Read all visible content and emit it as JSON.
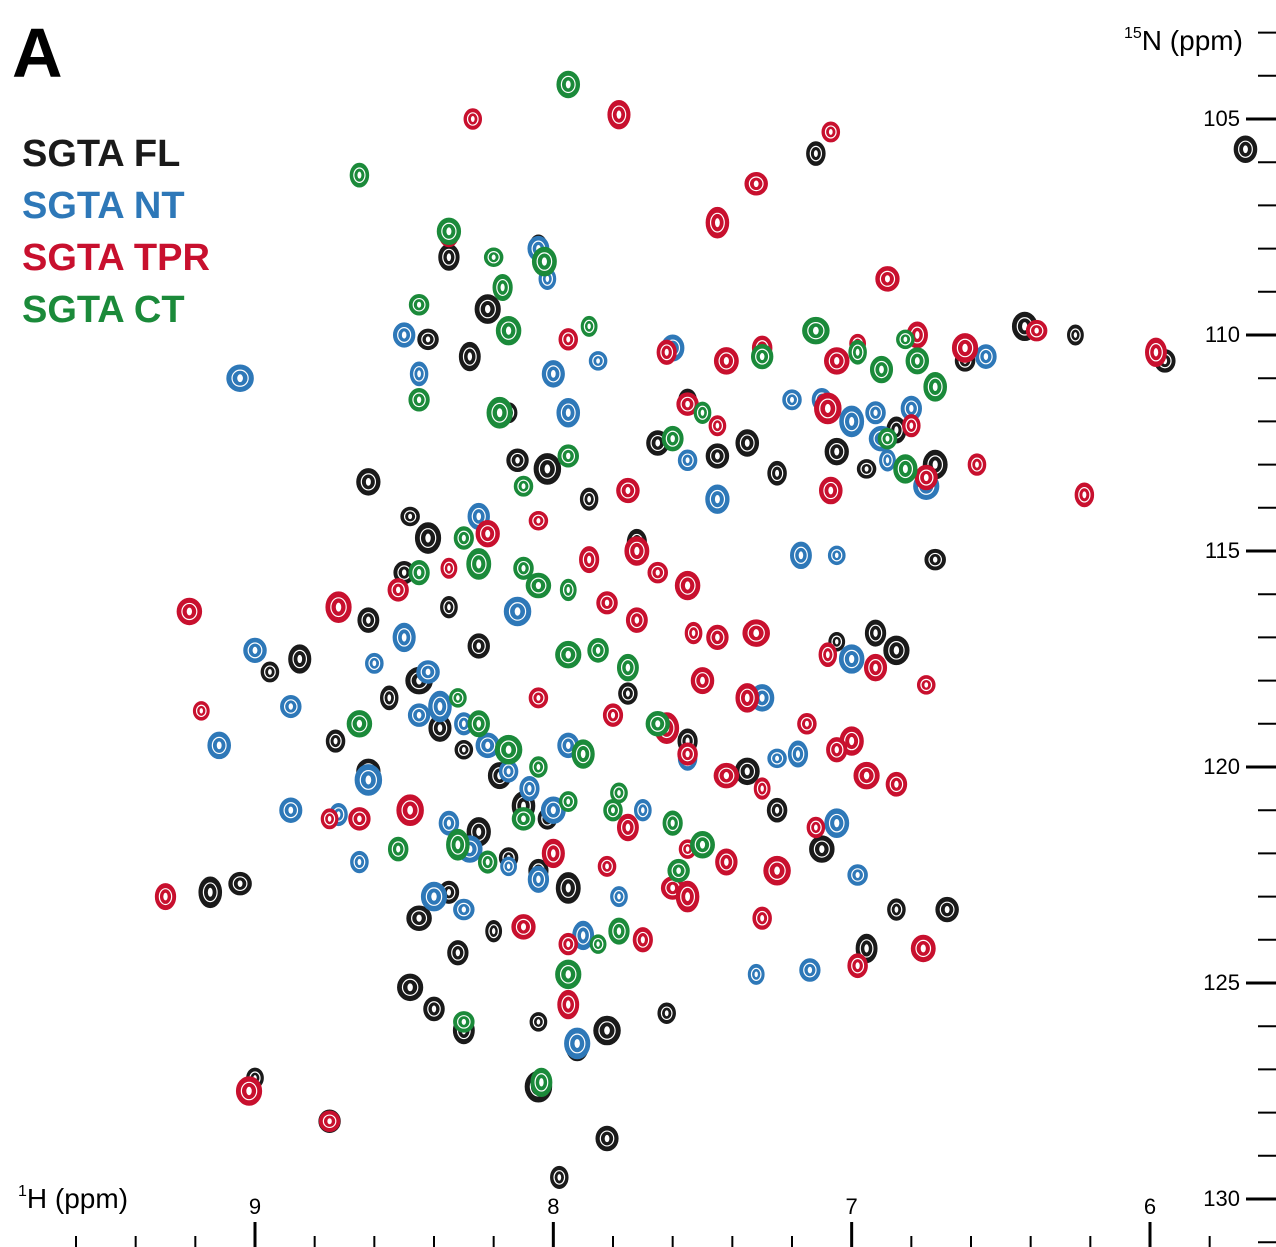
{
  "panel_label": "A",
  "legend": [
    {
      "label": "SGTA FL",
      "color": "#1a1a1a"
    },
    {
      "label": "SGTA NT",
      "color": "#2e78b8"
    },
    {
      "label": "SGTA TPR",
      "color": "#c8102e"
    },
    {
      "label": "SGTA CT",
      "color": "#1b8a3a"
    }
  ],
  "chart_data": {
    "type": "scatter",
    "subtype": "2D 1H-15N HSQC NMR contour overlay",
    "xlabel": {
      "sup": "1",
      "main": "H (ppm)"
    },
    "ylabel": {
      "sup": "15",
      "main": "N (ppm)"
    },
    "x_reversed": true,
    "y_reversed": true,
    "xlim": [
      10.0,
      5.9
    ],
    "ylim": [
      101.5,
      131.0
    ],
    "x_ticks": [
      9,
      8,
      7,
      6
    ],
    "y_ticks": [
      105,
      110,
      115,
      120,
      125,
      130
    ],
    "grid": false,
    "series": [
      {
        "name": "SGTA FL",
        "color": "#1a1a1a",
        "points": [
          [
            8.05,
            107.9
          ],
          [
            8.35,
            108.2
          ],
          [
            8.22,
            109.4
          ],
          [
            8.42,
            110.1
          ],
          [
            8.28,
            110.5
          ],
          [
            8.15,
            111.8
          ],
          [
            8.12,
            112.9
          ],
          [
            8.02,
            113.1
          ],
          [
            7.88,
            113.8
          ],
          [
            7.65,
            112.5
          ],
          [
            7.55,
            111.5
          ],
          [
            7.45,
            112.8
          ],
          [
            7.35,
            112.5
          ],
          [
            7.25,
            113.2
          ],
          [
            7.05,
            112.7
          ],
          [
            6.95,
            113.1
          ],
          [
            6.85,
            112.2
          ],
          [
            6.72,
            113.0
          ],
          [
            6.62,
            110.6
          ],
          [
            6.42,
            109.8
          ],
          [
            6.25,
            110.0
          ],
          [
            5.95,
            110.6
          ],
          [
            8.42,
            114.7
          ],
          [
            8.5,
            115.5
          ],
          [
            8.62,
            116.6
          ],
          [
            8.35,
            116.3
          ],
          [
            8.25,
            117.2
          ],
          [
            8.45,
            118.0
          ],
          [
            8.55,
            118.4
          ],
          [
            8.38,
            119.1
          ],
          [
            8.3,
            119.6
          ],
          [
            8.18,
            120.2
          ],
          [
            8.1,
            120.9
          ],
          [
            8.02,
            121.2
          ],
          [
            8.25,
            121.5
          ],
          [
            8.15,
            122.1
          ],
          [
            8.05,
            122.4
          ],
          [
            7.95,
            122.8
          ],
          [
            8.35,
            122.9
          ],
          [
            8.45,
            123.5
          ],
          [
            8.2,
            123.8
          ],
          [
            8.32,
            124.3
          ],
          [
            8.48,
            125.1
          ],
          [
            8.4,
            125.6
          ],
          [
            8.3,
            126.1
          ],
          [
            8.05,
            125.9
          ],
          [
            7.92,
            126.5
          ],
          [
            7.82,
            126.1
          ],
          [
            7.62,
            125.7
          ],
          [
            8.85,
            117.5
          ],
          [
            8.95,
            117.8
          ],
          [
            9.05,
            122.7
          ],
          [
            9.15,
            122.9
          ],
          [
            8.73,
            119.4
          ],
          [
            8.62,
            120.1
          ],
          [
            7.75,
            118.3
          ],
          [
            7.55,
            119.4
          ],
          [
            7.35,
            120.1
          ],
          [
            7.25,
            121.0
          ],
          [
            7.1,
            121.9
          ],
          [
            7.05,
            117.1
          ],
          [
            6.92,
            116.9
          ],
          [
            6.85,
            117.3
          ],
          [
            6.72,
            115.2
          ],
          [
            6.95,
            124.2
          ],
          [
            9.0,
            127.2
          ],
          [
            8.75,
            128.2
          ],
          [
            8.05,
            127.4
          ],
          [
            7.98,
            129.5
          ],
          [
            7.82,
            128.6
          ],
          [
            6.85,
            123.3
          ],
          [
            6.68,
            123.3
          ],
          [
            5.68,
            105.7
          ],
          [
            7.12,
            105.8
          ],
          [
            8.62,
            113.4
          ],
          [
            8.48,
            114.2
          ],
          [
            7.72,
            114.8
          ]
        ]
      },
      {
        "name": "SGTA NT",
        "color": "#2e78b8",
        "points": [
          [
            8.05,
            108.0
          ],
          [
            8.02,
            108.7
          ],
          [
            8.5,
            110.0
          ],
          [
            9.05,
            111.0
          ],
          [
            8.45,
            110.9
          ],
          [
            8.0,
            110.9
          ],
          [
            7.85,
            110.6
          ],
          [
            7.6,
            110.3
          ],
          [
            7.95,
            111.8
          ],
          [
            7.55,
            112.9
          ],
          [
            7.45,
            113.8
          ],
          [
            7.2,
            111.5
          ],
          [
            7.1,
            111.5
          ],
          [
            7.0,
            112.0
          ],
          [
            6.92,
            111.8
          ],
          [
            6.9,
            112.4
          ],
          [
            6.88,
            112.9
          ],
          [
            6.8,
            111.7
          ],
          [
            6.75,
            113.5
          ],
          [
            6.55,
            110.5
          ],
          [
            7.17,
            115.1
          ],
          [
            7.05,
            115.1
          ],
          [
            8.25,
            114.2
          ],
          [
            8.12,
            116.4
          ],
          [
            8.05,
            115.8
          ],
          [
            8.5,
            117.0
          ],
          [
            8.6,
            117.6
          ],
          [
            8.42,
            117.8
          ],
          [
            8.38,
            118.6
          ],
          [
            8.3,
            119.0
          ],
          [
            8.22,
            119.5
          ],
          [
            8.15,
            120.1
          ],
          [
            8.08,
            120.5
          ],
          [
            8.0,
            121.0
          ],
          [
            8.35,
            121.3
          ],
          [
            8.28,
            121.9
          ],
          [
            8.15,
            122.3
          ],
          [
            8.05,
            122.6
          ],
          [
            8.4,
            123.0
          ],
          [
            8.3,
            123.3
          ],
          [
            7.9,
            123.9
          ],
          [
            7.78,
            123.0
          ],
          [
            8.45,
            118.8
          ],
          [
            8.62,
            120.3
          ],
          [
            8.72,
            121.1
          ],
          [
            8.88,
            121.0
          ],
          [
            8.65,
            122.2
          ],
          [
            9.0,
            117.3
          ],
          [
            9.12,
            119.5
          ],
          [
            7.55,
            119.8
          ],
          [
            7.3,
            118.4
          ],
          [
            7.25,
            119.8
          ],
          [
            7.18,
            119.7
          ],
          [
            7.05,
            121.3
          ],
          [
            6.98,
            122.5
          ],
          [
            7.0,
            117.5
          ],
          [
            7.32,
            124.8
          ],
          [
            7.14,
            124.7
          ],
          [
            7.92,
            126.4
          ],
          [
            8.88,
            118.6
          ],
          [
            7.95,
            119.5
          ],
          [
            7.7,
            121.0
          ]
        ]
      },
      {
        "name": "SGTA TPR",
        "color": "#c8102e",
        "points": [
          [
            8.27,
            105.0
          ],
          [
            7.78,
            104.9
          ],
          [
            7.07,
            105.3
          ],
          [
            7.32,
            106.5
          ],
          [
            7.45,
            107.4
          ],
          [
            8.35,
            107.7
          ],
          [
            6.88,
            108.7
          ],
          [
            7.95,
            110.1
          ],
          [
            7.62,
            110.4
          ],
          [
            7.42,
            110.6
          ],
          [
            7.3,
            110.3
          ],
          [
            7.05,
            110.6
          ],
          [
            6.98,
            110.2
          ],
          [
            6.78,
            110.0
          ],
          [
            6.62,
            110.3
          ],
          [
            6.38,
            109.9
          ],
          [
            5.98,
            110.4
          ],
          [
            7.45,
            112.1
          ],
          [
            7.55,
            111.6
          ],
          [
            7.08,
            111.7
          ],
          [
            6.8,
            112.1
          ],
          [
            6.75,
            113.3
          ],
          [
            6.58,
            113.0
          ],
          [
            7.75,
            113.6
          ],
          [
            7.07,
            113.6
          ],
          [
            6.22,
            113.7
          ],
          [
            8.22,
            114.6
          ],
          [
            8.05,
            114.3
          ],
          [
            7.88,
            115.2
          ],
          [
            7.72,
            115.0
          ],
          [
            7.65,
            115.5
          ],
          [
            7.55,
            115.8
          ],
          [
            8.35,
            115.4
          ],
          [
            8.52,
            115.9
          ],
          [
            8.72,
            116.3
          ],
          [
            7.82,
            116.2
          ],
          [
            7.72,
            116.6
          ],
          [
            7.53,
            116.9
          ],
          [
            7.45,
            117.0
          ],
          [
            7.32,
            116.9
          ],
          [
            7.08,
            117.4
          ],
          [
            6.92,
            117.7
          ],
          [
            6.75,
            118.1
          ],
          [
            7.5,
            118.0
          ],
          [
            7.35,
            118.4
          ],
          [
            7.15,
            119.0
          ],
          [
            7.0,
            119.4
          ],
          [
            8.05,
            118.4
          ],
          [
            7.8,
            118.8
          ],
          [
            7.62,
            119.1
          ],
          [
            7.55,
            119.7
          ],
          [
            7.42,
            120.2
          ],
          [
            7.3,
            120.5
          ],
          [
            7.05,
            119.6
          ],
          [
            6.95,
            120.2
          ],
          [
            6.85,
            120.4
          ],
          [
            7.75,
            121.4
          ],
          [
            7.55,
            121.9
          ],
          [
            7.42,
            122.2
          ],
          [
            7.25,
            122.4
          ],
          [
            7.12,
            121.4
          ],
          [
            8.0,
            122.0
          ],
          [
            7.82,
            122.3
          ],
          [
            7.6,
            122.8
          ],
          [
            7.55,
            123.0
          ],
          [
            7.3,
            123.5
          ],
          [
            8.1,
            123.7
          ],
          [
            7.95,
            124.1
          ],
          [
            7.7,
            124.0
          ],
          [
            6.76,
            124.2
          ],
          [
            6.98,
            124.6
          ],
          [
            9.22,
            116.4
          ],
          [
            9.18,
            118.7
          ],
          [
            9.3,
            123.0
          ],
          [
            9.02,
            127.5
          ],
          [
            8.75,
            128.2
          ],
          [
            7.95,
            125.5
          ],
          [
            8.75,
            121.2
          ],
          [
            8.65,
            121.2
          ],
          [
            8.48,
            121.0
          ]
        ]
      },
      {
        "name": "SGTA CT",
        "color": "#1b8a3a",
        "points": [
          [
            7.95,
            104.2
          ],
          [
            8.65,
            106.3
          ],
          [
            8.35,
            107.6
          ],
          [
            8.2,
            108.2
          ],
          [
            8.17,
            108.9
          ],
          [
            8.03,
            108.3
          ],
          [
            8.45,
            109.3
          ],
          [
            8.15,
            109.9
          ],
          [
            7.88,
            109.8
          ],
          [
            8.45,
            111.5
          ],
          [
            8.18,
            111.8
          ],
          [
            7.95,
            112.8
          ],
          [
            7.6,
            112.4
          ],
          [
            7.5,
            111.8
          ],
          [
            7.3,
            110.5
          ],
          [
            7.12,
            109.9
          ],
          [
            6.98,
            110.4
          ],
          [
            6.9,
            110.8
          ],
          [
            6.82,
            110.1
          ],
          [
            6.78,
            110.6
          ],
          [
            6.72,
            111.2
          ],
          [
            6.88,
            112.4
          ],
          [
            6.82,
            113.1
          ],
          [
            8.1,
            113.5
          ],
          [
            8.3,
            114.7
          ],
          [
            8.25,
            115.3
          ],
          [
            8.1,
            115.4
          ],
          [
            8.05,
            115.8
          ],
          [
            7.95,
            115.9
          ],
          [
            8.45,
            115.5
          ],
          [
            7.95,
            117.4
          ],
          [
            7.85,
            117.3
          ],
          [
            7.75,
            117.7
          ],
          [
            8.32,
            118.4
          ],
          [
            8.25,
            119.0
          ],
          [
            8.15,
            119.6
          ],
          [
            8.05,
            120.0
          ],
          [
            7.9,
            119.7
          ],
          [
            7.95,
            120.8
          ],
          [
            8.1,
            121.2
          ],
          [
            8.32,
            121.8
          ],
          [
            8.22,
            122.2
          ],
          [
            7.65,
            119.0
          ],
          [
            7.8,
            121.0
          ],
          [
            7.6,
            121.3
          ],
          [
            7.5,
            121.8
          ],
          [
            8.52,
            121.9
          ],
          [
            8.65,
            119.0
          ],
          [
            7.85,
            124.1
          ],
          [
            7.78,
            123.8
          ],
          [
            7.95,
            124.8
          ],
          [
            8.3,
            125.9
          ],
          [
            8.04,
            127.3
          ],
          [
            7.78,
            120.6
          ],
          [
            7.58,
            122.4
          ]
        ]
      }
    ]
  }
}
